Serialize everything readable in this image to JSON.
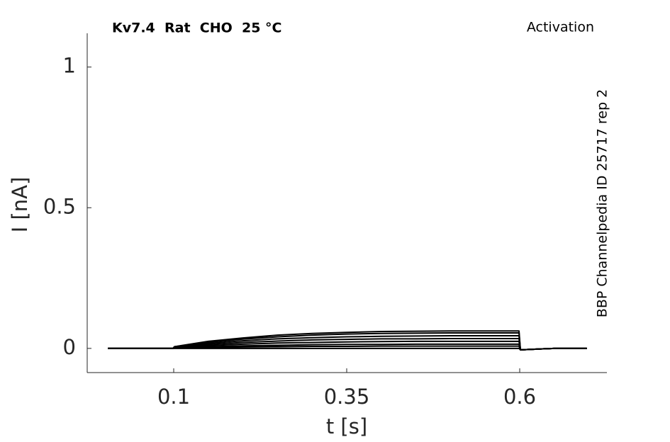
{
  "chart_data": {
    "type": "line",
    "title": "Kv7.4  Rat  CHO  25 °C",
    "subtitle": "Activation",
    "annotation": "BBP Channelpedia ID 25717 rep 2",
    "x_label": "t [s]",
    "y_label": "I [nA]",
    "xlim": [
      -0.025,
      0.726
    ],
    "ylim": [
      -0.086,
      1.12
    ],
    "xticks": [
      0.1,
      0.35,
      0.6
    ],
    "yticks": [
      0,
      0.5,
      1
    ],
    "grid": false,
    "x": [
      0.005,
      0.05,
      0.099,
      0.101,
      0.15,
      0.2,
      0.25,
      0.3,
      0.35,
      0.4,
      0.45,
      0.5,
      0.55,
      0.599,
      0.601,
      0.65,
      0.697
    ],
    "series": [
      {
        "color": "#000000",
        "values": [
          0,
          0,
          0,
          0.006,
          0.025,
          0.037,
          0.047,
          0.053,
          0.057,
          0.06,
          0.061,
          0.062,
          0.062,
          0.062,
          -0.005,
          0,
          0
        ]
      },
      {
        "color": "#000000",
        "values": [
          0,
          0,
          0,
          0.006,
          0.022,
          0.033,
          0.041,
          0.047,
          0.051,
          0.053,
          0.054,
          0.055,
          0.055,
          0.055,
          -0.005,
          0,
          0
        ]
      },
      {
        "color": "#000000",
        "values": [
          0,
          0,
          0,
          0.005,
          0.018,
          0.027,
          0.034,
          0.038,
          0.041,
          0.043,
          0.044,
          0.045,
          0.045,
          0.045,
          -0.005,
          0,
          0
        ]
      },
      {
        "color": "#000000",
        "values": [
          0,
          0,
          0,
          0.004,
          0.014,
          0.021,
          0.026,
          0.03,
          0.032,
          0.034,
          0.034,
          0.035,
          0.035,
          0.035,
          -0.005,
          0,
          0
        ]
      },
      {
        "color": "#000000",
        "values": [
          0,
          0,
          0,
          0.003,
          0.01,
          0.015,
          0.019,
          0.021,
          0.023,
          0.024,
          0.025,
          0.025,
          0.025,
          0.025,
          -0.005,
          0,
          0
        ]
      },
      {
        "color": "#000000",
        "values": [
          0,
          0,
          0,
          0.002,
          0.006,
          0.009,
          0.011,
          0.013,
          0.014,
          0.014,
          0.015,
          0.015,
          0.015,
          0.015,
          -0.005,
          0,
          0
        ]
      },
      {
        "color": "#000000",
        "values": [
          0,
          0,
          0,
          0.001,
          0.003,
          0.005,
          0.006,
          0.007,
          0.007,
          0.008,
          0.008,
          0.008,
          0.008,
          0.008,
          -0.005,
          0,
          0
        ]
      },
      {
        "color": "#000000",
        "values": [
          0,
          0,
          0,
          0,
          0,
          0,
          0,
          0,
          0,
          0,
          0,
          0,
          0,
          0,
          -0.005,
          0,
          0
        ]
      }
    ]
  }
}
